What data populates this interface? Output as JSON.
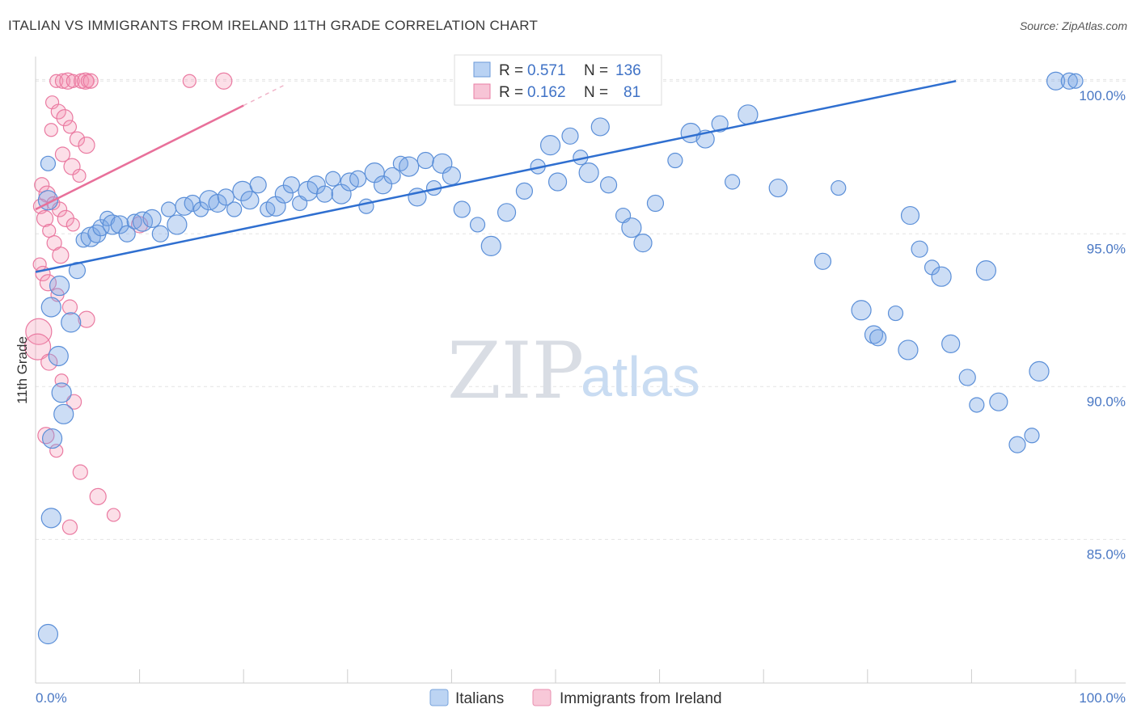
{
  "title": "ITALIAN VS IMMIGRANTS FROM IRELAND 11TH GRADE CORRELATION CHART",
  "source": "Source: ZipAtlas.com",
  "watermark": {
    "zip": "ZIP",
    "atlas": "atlas"
  },
  "colors": {
    "blue": "#5b8fd8",
    "blue_line": "#2f6fd0",
    "pink": "#ea7aa1",
    "pink_line": "#e8709a"
  },
  "chart_data": {
    "type": "scatter",
    "title": "ITALIAN VS IMMIGRANTS FROM IRELAND 11TH GRADE CORRELATION CHART",
    "xlabel": "",
    "ylabel": "11th Grade",
    "xlim": [
      0,
      100
    ],
    "ylim": [
      80.3,
      100.8
    ],
    "x_tick_labels": [
      "0.0%",
      "100.0%"
    ],
    "y_ticks": [
      85,
      90,
      95,
      100
    ],
    "y_tick_labels": [
      "85.0%",
      "90.0%",
      "95.0%",
      "100.0%"
    ],
    "stats": [
      {
        "r_label": "R =",
        "r_value": "0.571",
        "n_label": "N =",
        "n_value": "136"
      },
      {
        "r_label": "R =",
        "r_value": "0.162",
        "n_label": "N =",
        "n_value": "81"
      }
    ],
    "series": [
      {
        "name": "Italians",
        "trend": [
          [
            0,
            93.75
          ],
          [
            88.5,
            100.0
          ]
        ],
        "points": [
          [
            1.2,
            97.3
          ],
          [
            1.2,
            96.1
          ],
          [
            1.5,
            92.6
          ],
          [
            2.2,
            91.0
          ],
          [
            2.7,
            89.1
          ],
          [
            2.5,
            89.8
          ],
          [
            1.6,
            88.3
          ],
          [
            1.5,
            85.7
          ],
          [
            1.2,
            81.9
          ],
          [
            2.3,
            93.3
          ],
          [
            3.4,
            92.1
          ],
          [
            4.0,
            93.8
          ],
          [
            4.6,
            94.8
          ],
          [
            5.3,
            94.9
          ],
          [
            5.9,
            95.0
          ],
          [
            6.3,
            95.2
          ],
          [
            6.9,
            95.5
          ],
          [
            7.4,
            95.3
          ],
          [
            8.1,
            95.3
          ],
          [
            8.8,
            95.0
          ],
          [
            9.5,
            95.4
          ],
          [
            10.3,
            95.4
          ],
          [
            11.2,
            95.5
          ],
          [
            12.0,
            95.0
          ],
          [
            12.8,
            95.8
          ],
          [
            13.6,
            95.3
          ],
          [
            14.3,
            95.9
          ],
          [
            15.1,
            96.0
          ],
          [
            15.9,
            95.8
          ],
          [
            16.7,
            96.1
          ],
          [
            17.5,
            96.0
          ],
          [
            18.3,
            96.2
          ],
          [
            19.1,
            95.8
          ],
          [
            19.9,
            96.4
          ],
          [
            20.6,
            96.1
          ],
          [
            21.4,
            96.6
          ],
          [
            22.3,
            95.8
          ],
          [
            23.1,
            95.9
          ],
          [
            23.9,
            96.3
          ],
          [
            24.6,
            96.6
          ],
          [
            25.4,
            96.0
          ],
          [
            26.2,
            96.4
          ],
          [
            27.0,
            96.6
          ],
          [
            27.8,
            96.3
          ],
          [
            28.6,
            96.8
          ],
          [
            29.4,
            96.3
          ],
          [
            30.2,
            96.7
          ],
          [
            31.0,
            96.8
          ],
          [
            31.8,
            95.9
          ],
          [
            32.6,
            97.0
          ],
          [
            33.4,
            96.6
          ],
          [
            34.3,
            96.9
          ],
          [
            35.1,
            97.3
          ],
          [
            35.9,
            97.2
          ],
          [
            36.7,
            96.2
          ],
          [
            37.5,
            97.4
          ],
          [
            38.3,
            96.5
          ],
          [
            39.1,
            97.3
          ],
          [
            40.0,
            96.9
          ],
          [
            41.0,
            95.8
          ],
          [
            42.5,
            95.3
          ],
          [
            43.8,
            94.6
          ],
          [
            45.3,
            95.7
          ],
          [
            47.0,
            96.4
          ],
          [
            48.3,
            97.2
          ],
          [
            49.5,
            97.9
          ],
          [
            50.2,
            96.7
          ],
          [
            51.4,
            98.2
          ],
          [
            52.4,
            97.5
          ],
          [
            53.2,
            97.0
          ],
          [
            54.3,
            98.5
          ],
          [
            55.1,
            96.6
          ],
          [
            56.5,
            95.6
          ],
          [
            57.3,
            95.2
          ],
          [
            58.4,
            94.7
          ],
          [
            59.6,
            96.0
          ],
          [
            61.5,
            97.4
          ],
          [
            63.0,
            98.3
          ],
          [
            64.4,
            98.1
          ],
          [
            65.8,
            98.6
          ],
          [
            67.0,
            96.7
          ],
          [
            68.5,
            98.9
          ],
          [
            71.4,
            96.5
          ],
          [
            75.7,
            94.1
          ],
          [
            77.2,
            96.5
          ],
          [
            79.4,
            92.5
          ],
          [
            80.6,
            91.7
          ],
          [
            81.0,
            91.6
          ],
          [
            82.7,
            92.4
          ],
          [
            83.9,
            91.2
          ],
          [
            84.1,
            95.6
          ],
          [
            85.0,
            94.5
          ],
          [
            86.2,
            93.9
          ],
          [
            87.1,
            93.6
          ],
          [
            88.0,
            91.4
          ],
          [
            89.6,
            90.3
          ],
          [
            90.5,
            89.4
          ],
          [
            91.4,
            93.8
          ],
          [
            92.6,
            89.5
          ],
          [
            94.4,
            88.1
          ],
          [
            95.8,
            88.4
          ],
          [
            96.5,
            90.5
          ],
          [
            98.1,
            100.0
          ],
          [
            99.4,
            100.0
          ],
          [
            100.0,
            100.0
          ]
        ]
      },
      {
        "name": "Immigrants from Ireland",
        "trend": [
          [
            0,
            95.8
          ],
          [
            20.0,
            99.2
          ]
        ],
        "points": [
          [
            2.0,
            100.0
          ],
          [
            2.6,
            100.0
          ],
          [
            3.1,
            100.0
          ],
          [
            3.6,
            100.0
          ],
          [
            4.4,
            100.0
          ],
          [
            4.8,
            100.0
          ],
          [
            5.0,
            100.0
          ],
          [
            5.3,
            100.0
          ],
          [
            18.1,
            100.0
          ],
          [
            1.6,
            99.3
          ],
          [
            2.2,
            99.0
          ],
          [
            2.8,
            98.8
          ],
          [
            3.3,
            98.5
          ],
          [
            4.0,
            98.1
          ],
          [
            4.9,
            97.9
          ],
          [
            1.5,
            98.4
          ],
          [
            2.6,
            97.6
          ],
          [
            3.5,
            97.2
          ],
          [
            4.2,
            96.9
          ],
          [
            0.6,
            96.6
          ],
          [
            1.1,
            96.3
          ],
          [
            1.7,
            96.0
          ],
          [
            2.3,
            95.8
          ],
          [
            2.9,
            95.5
          ],
          [
            3.6,
            95.3
          ],
          [
            0.5,
            95.9
          ],
          [
            0.9,
            95.5
          ],
          [
            1.3,
            95.1
          ],
          [
            1.8,
            94.7
          ],
          [
            2.4,
            94.3
          ],
          [
            0.4,
            94.0
          ],
          [
            0.7,
            93.7
          ],
          [
            1.2,
            93.4
          ],
          [
            2.1,
            93.0
          ],
          [
            3.3,
            92.6
          ],
          [
            4.9,
            92.2
          ],
          [
            0.3,
            91.8
          ],
          [
            0.2,
            91.3
          ],
          [
            1.3,
            90.8
          ],
          [
            2.5,
            90.2
          ],
          [
            3.7,
            89.5
          ],
          [
            1.0,
            88.4
          ],
          [
            2.0,
            87.9
          ],
          [
            4.3,
            87.2
          ],
          [
            6.0,
            86.4
          ],
          [
            7.5,
            85.8
          ],
          [
            3.3,
            85.4
          ],
          [
            10.0,
            95.3
          ],
          [
            14.8,
            100.0
          ]
        ]
      }
    ]
  },
  "legend": {
    "items": [
      {
        "label": "Italians",
        "color": "#9cc0ee"
      },
      {
        "label": "Immigrants from Ireland",
        "color": "#f4b8cd"
      }
    ]
  }
}
